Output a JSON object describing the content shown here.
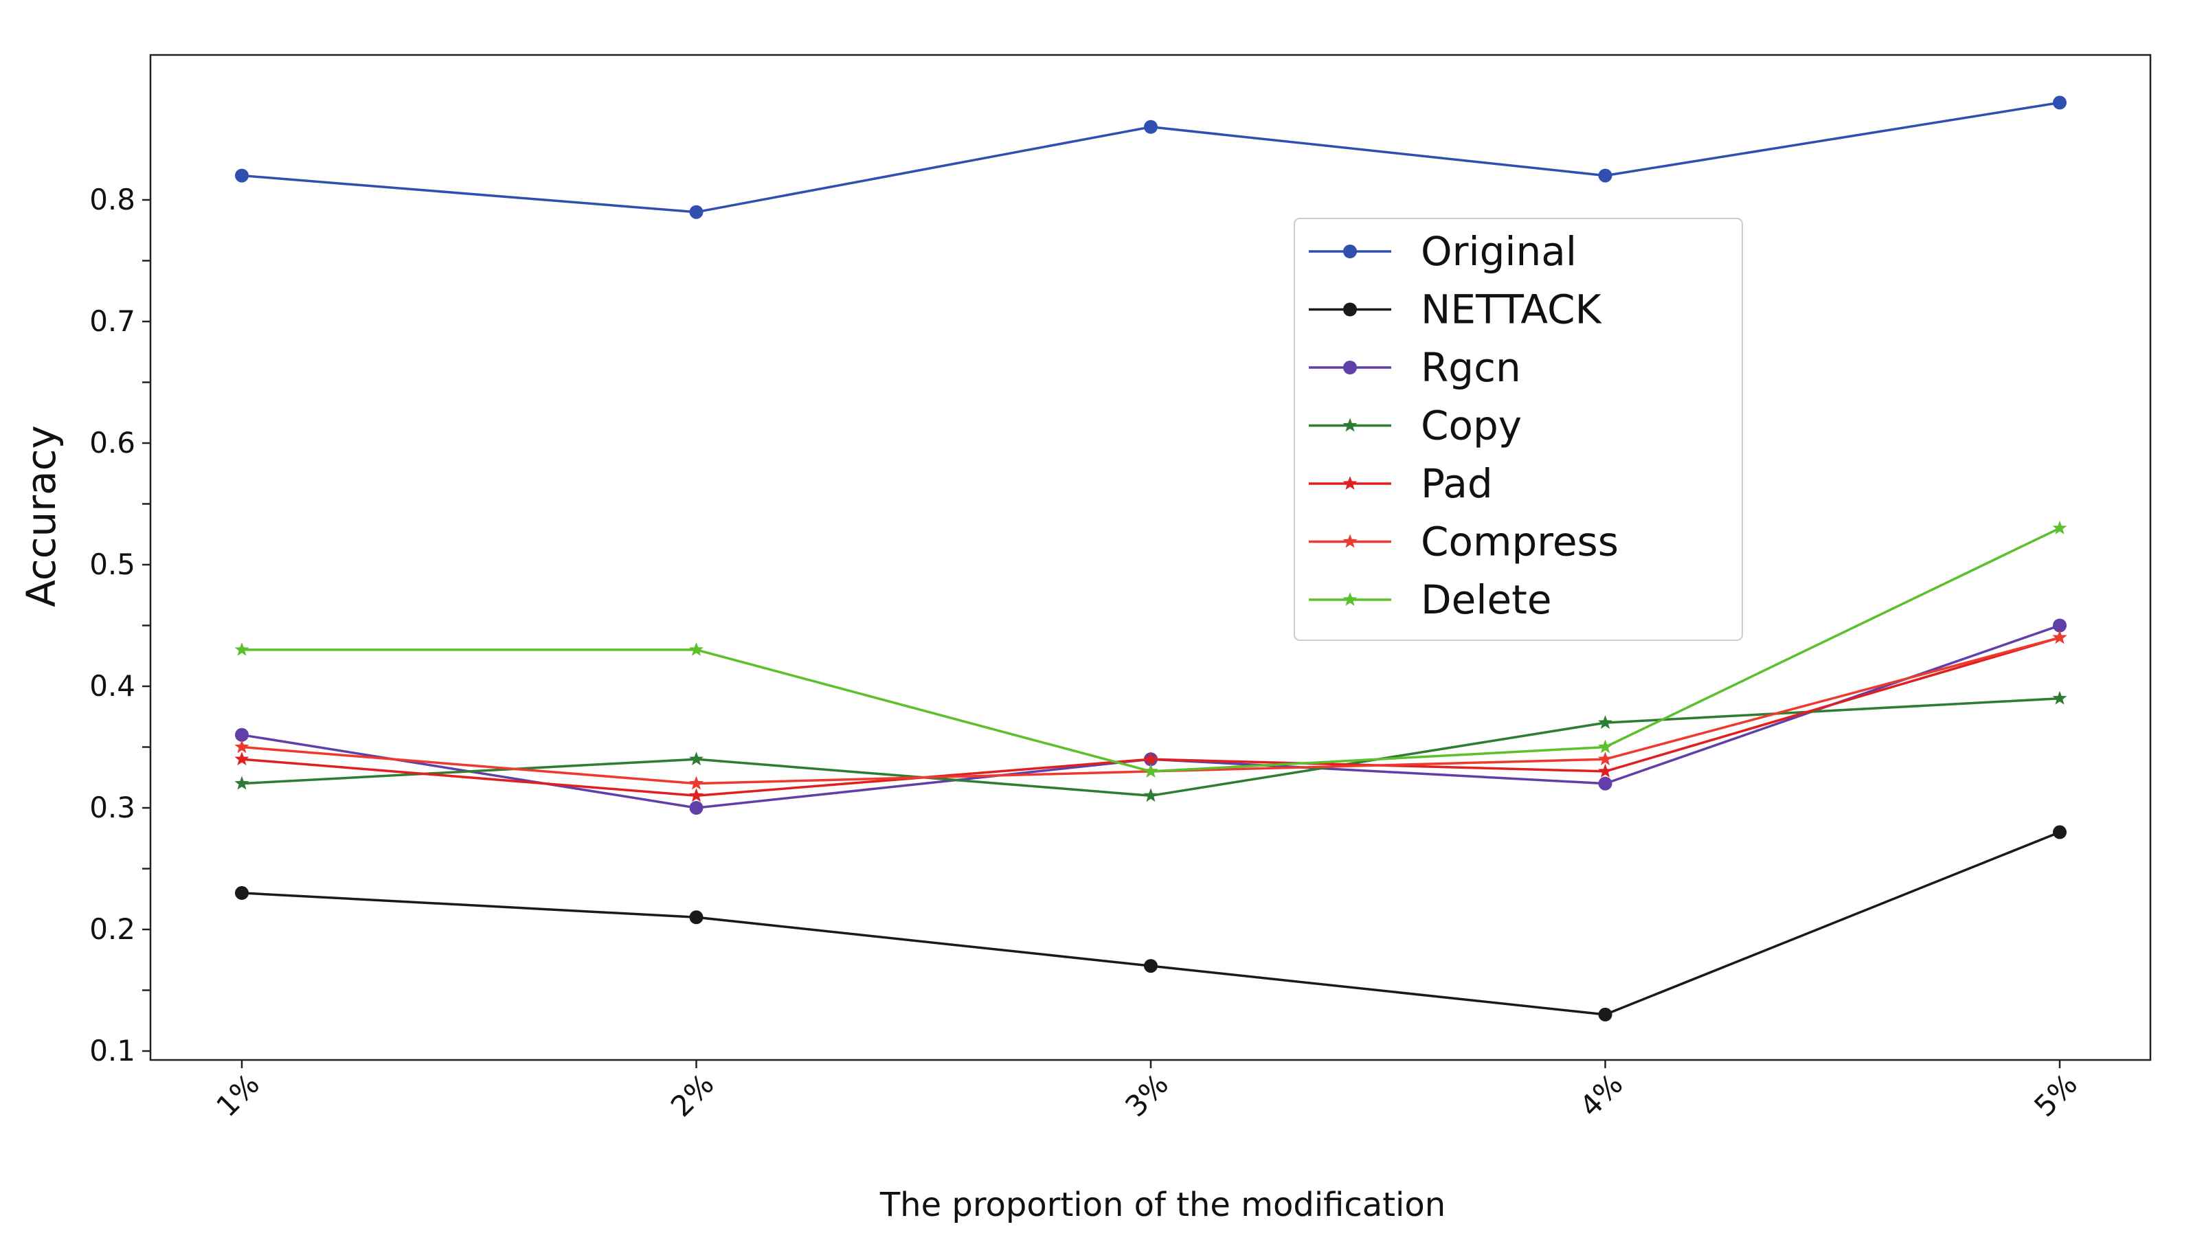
{
  "chart_data": {
    "type": "line",
    "title": "",
    "xlabel": "The proportion of the modification",
    "ylabel": "Accuracy",
    "categories": [
      "1%",
      "2%",
      "3%",
      "4%",
      "5%"
    ],
    "ylim": [
      0.1,
      0.9
    ],
    "yticks": [
      0.1,
      0.2,
      0.3,
      0.4,
      0.5,
      0.6,
      0.7,
      0.8
    ],
    "grid": false,
    "legend_position": "upper-center-right",
    "series": [
      {
        "name": "Original",
        "color": "#3050b0",
        "marker": "circle",
        "values": [
          0.82,
          0.79,
          0.86,
          0.82,
          0.88
        ]
      },
      {
        "name": "NETTACK",
        "color": "#1a1a1a",
        "marker": "circle",
        "values": [
          0.23,
          0.21,
          0.17,
          0.13,
          0.28
        ]
      },
      {
        "name": "Rgcn",
        "color": "#6040a8",
        "marker": "circle",
        "values": [
          0.36,
          0.3,
          0.34,
          0.32,
          0.45
        ]
      },
      {
        "name": "Copy",
        "color": "#2e7d32",
        "marker": "star",
        "values": [
          0.32,
          0.34,
          0.31,
          0.37,
          0.39
        ]
      },
      {
        "name": "Pad",
        "color": "#e02020",
        "marker": "star",
        "values": [
          0.34,
          0.31,
          0.34,
          0.33,
          0.44
        ]
      },
      {
        "name": "Compress",
        "color": "#ee3a2e",
        "marker": "star",
        "values": [
          0.35,
          0.32,
          0.33,
          0.34,
          0.44
        ]
      },
      {
        "name": "Delete",
        "color": "#5cc02a",
        "marker": "star",
        "values": [
          0.43,
          0.43,
          0.33,
          0.35,
          0.53
        ]
      }
    ]
  }
}
